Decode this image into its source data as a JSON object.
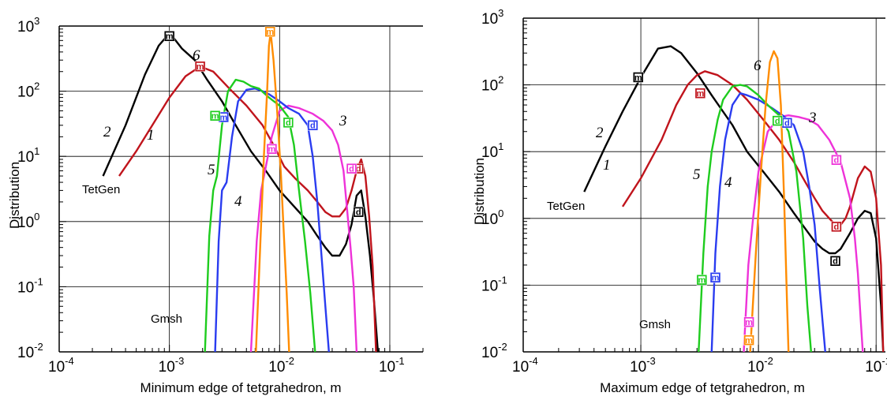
{
  "colors": {
    "1": "#c0141c",
    "2": "#000000",
    "3": "#ee32d8",
    "4": "#2a3cf0",
    "5": "#1ecc1e",
    "6": "#ff8c00"
  },
  "chart_data": [
    {
      "type": "line",
      "title": "",
      "xlabel": "Minimum edge of tetgrahedron, m",
      "ylabel": "Distribution",
      "xscale": "log",
      "yscale": "log",
      "xlim": [
        0.0001,
        0.2
      ],
      "ylim": [
        0.01,
        1000
      ],
      "xticks": [
        {
          "v": 0.0001,
          "b": "10",
          "e": "-4"
        },
        {
          "v": 0.001,
          "b": "10",
          "e": "-3"
        },
        {
          "v": 0.01,
          "b": "10",
          "e": "-2"
        },
        {
          "v": 0.1,
          "b": "10",
          "e": "-1"
        }
      ],
      "yticks": [
        {
          "v": 0.01,
          "b": "10",
          "e": "-2"
        },
        {
          "v": 0.1,
          "b": "10",
          "e": "-1"
        },
        {
          "v": 1,
          "b": "10",
          "e": "0"
        },
        {
          "v": 10,
          "b": "10",
          "e": "1"
        },
        {
          "v": 100,
          "b": "10",
          "e": "2"
        },
        {
          "v": 1000,
          "b": "10",
          "e": "3"
        }
      ],
      "grid": true,
      "annotations": [
        {
          "text": "TetGen",
          "x": 0.00015,
          "y": 2.6
        },
        {
          "text": "Gmsh",
          "x": 0.0006,
          "y": 0.035
        }
      ],
      "series": [
        {
          "num": "1",
          "x": [
            0.00035,
            0.0005,
            0.0007,
            0.001,
            0.0014,
            0.0019,
            0.0025,
            0.0035,
            0.005,
            0.007,
            0.009,
            0.011,
            0.014,
            0.018,
            0.022,
            0.026,
            0.03,
            0.035,
            0.04,
            0.045,
            0.05,
            0.055,
            0.06,
            0.065,
            0.07,
            0.075
          ],
          "y": [
            5,
            12,
            30,
            80,
            170,
            240,
            200,
            110,
            60,
            30,
            14,
            7,
            4.5,
            3,
            2,
            1.4,
            1.2,
            1.2,
            1.6,
            3,
            6,
            9,
            5,
            1.2,
            0.2,
            0.01
          ],
          "markers": [
            {
              "t": "m",
              "x": 0.0019,
              "y": 240
            },
            {
              "t": "d",
              "x": 0.052,
              "y": 6.5
            }
          ]
        },
        {
          "num": "2",
          "x": [
            0.00025,
            0.0004,
            0.0006,
            0.0008,
            0.00095,
            0.0011,
            0.0013,
            0.0017,
            0.0022,
            0.003,
            0.004,
            0.0055,
            0.0075,
            0.01,
            0.014,
            0.018,
            0.022,
            0.026,
            0.03,
            0.035,
            0.04,
            0.045,
            0.05,
            0.055,
            0.06,
            0.066,
            0.072,
            0.078
          ],
          "y": [
            5,
            30,
            180,
            500,
            700,
            650,
            450,
            300,
            150,
            70,
            30,
            12,
            6,
            3,
            1.6,
            1,
            0.6,
            0.4,
            0.3,
            0.3,
            0.45,
            0.9,
            2.5,
            3,
            1.2,
            0.3,
            0.06,
            0.01
          ],
          "markers": [
            {
              "t": "m",
              "x": 0.001,
              "y": 700
            },
            {
              "t": "d",
              "x": 0.052,
              "y": 1.4
            }
          ]
        },
        {
          "num": "3",
          "x": [
            0.0055,
            0.0062,
            0.0068,
            0.0075,
            0.0085,
            0.01,
            0.012,
            0.015,
            0.02,
            0.025,
            0.03,
            0.034,
            0.038,
            0.041,
            0.044,
            0.047,
            0.05
          ],
          "y": [
            0.01,
            0.5,
            3,
            7,
            20,
            50,
            60,
            55,
            45,
            35,
            25,
            15,
            6,
            1.5,
            0.4,
            0.1,
            0.01
          ],
          "markers": [
            {
              "t": "m",
              "x": 0.0085,
              "y": 13
            },
            {
              "t": "d",
              "x": 0.045,
              "y": 6.5
            }
          ]
        },
        {
          "num": "4",
          "x": [
            0.0026,
            0.0028,
            0.003,
            0.0033,
            0.0037,
            0.0042,
            0.005,
            0.006,
            0.007,
            0.008,
            0.01,
            0.012,
            0.015,
            0.018,
            0.02,
            0.022,
            0.024,
            0.026,
            0.028
          ],
          "y": [
            0.01,
            0.5,
            3,
            4,
            20,
            70,
            105,
            110,
            100,
            90,
            70,
            55,
            45,
            30,
            10,
            2,
            0.3,
            0.05,
            0.01
          ],
          "markers": [
            {
              "t": "m",
              "x": 0.0031,
              "y": 40
            },
            {
              "t": "d",
              "x": 0.02,
              "y": 30
            }
          ]
        },
        {
          "num": "5",
          "x": [
            0.0021,
            0.0023,
            0.0025,
            0.0027,
            0.003,
            0.0034,
            0.004,
            0.0047,
            0.0055,
            0.0065,
            0.008,
            0.01,
            0.012,
            0.0135,
            0.015,
            0.017,
            0.019,
            0.021
          ],
          "y": [
            0.01,
            0.6,
            3,
            5,
            30,
            100,
            150,
            140,
            120,
            110,
            80,
            60,
            40,
            15,
            3,
            0.5,
            0.08,
            0.01
          ],
          "markers": [
            {
              "t": "m",
              "x": 0.0026,
              "y": 42
            },
            {
              "t": "d",
              "x": 0.012,
              "y": 33
            }
          ]
        },
        {
          "num": "6",
          "x": [
            0.0061,
            0.0067,
            0.0072,
            0.0077,
            0.008,
            0.0083,
            0.0088,
            0.0095,
            0.0103,
            0.011,
            0.0116,
            0.0122
          ],
          "y": [
            0.01,
            0.5,
            10,
            100,
            500,
            800,
            300,
            50,
            5,
            0.5,
            0.08,
            0.01
          ],
          "markers": [
            {
              "t": "m",
              "x": 0.0082,
              "y": 820
            }
          ]
        }
      ]
    },
    {
      "type": "line",
      "title": "",
      "xlabel": "Maximum edge of tetgrahedron, m",
      "ylabel": "Distribution",
      "xscale": "log",
      "yscale": "log",
      "xlim": [
        0.0001,
        0.12
      ],
      "ylim": [
        0.01,
        1000
      ],
      "xticks": [
        {
          "v": 0.0001,
          "b": "10",
          "e": "-4"
        },
        {
          "v": 0.001,
          "b": "10",
          "e": "-3"
        },
        {
          "v": 0.01,
          "b": "10",
          "e": "-2"
        },
        {
          "v": 0.1,
          "b": "10",
          "e": "-1"
        }
      ],
      "yticks": [
        {
          "v": 0.01,
          "b": "10",
          "e": "-2"
        },
        {
          "v": 0.1,
          "b": "10",
          "e": "-1"
        },
        {
          "v": 1,
          "b": "10",
          "e": "0"
        },
        {
          "v": 10,
          "b": "10",
          "e": "1"
        },
        {
          "v": 100,
          "b": "10",
          "e": "2"
        },
        {
          "v": 1000,
          "b": "10",
          "e": "3"
        }
      ],
      "grid": true,
      "annotations": [
        {
          "text": "TetGen",
          "x": 0.00025,
          "y": 1.2
        },
        {
          "text": "Gmsh",
          "x": 0.0008,
          "y": 0.025
        }
      ],
      "series": [
        {
          "num": "1",
          "x": [
            0.0007,
            0.001,
            0.0015,
            0.002,
            0.0025,
            0.003,
            0.0035,
            0.0045,
            0.006,
            0.008,
            0.011,
            0.015,
            0.02,
            0.025,
            0.03,
            0.035,
            0.04,
            0.045,
            0.05,
            0.055,
            0.06,
            0.07,
            0.08,
            0.09,
            0.1,
            0.11,
            0.115
          ],
          "y": [
            1.5,
            4,
            15,
            50,
            100,
            140,
            160,
            140,
            100,
            60,
            30,
            15,
            7,
            3.5,
            2,
            1.3,
            1,
            0.8,
            0.8,
            1,
            1.5,
            4,
            6,
            5,
            2,
            0.2,
            0.01
          ],
          "markers": [
            {
              "t": "m",
              "x": 0.0032,
              "y": 75
            },
            {
              "t": "d",
              "x": 0.046,
              "y": 0.75
            }
          ]
        },
        {
          "num": "2",
          "x": [
            0.00033,
            0.0005,
            0.0007,
            0.001,
            0.0014,
            0.0018,
            0.0022,
            0.003,
            0.004,
            0.006,
            0.008,
            0.011,
            0.015,
            0.02,
            0.025,
            0.03,
            0.035,
            0.04,
            0.045,
            0.05,
            0.06,
            0.07,
            0.08,
            0.09,
            0.1,
            0.11,
            0.115
          ],
          "y": [
            2.5,
            12,
            40,
            130,
            350,
            380,
            300,
            150,
            70,
            25,
            10,
            5,
            2.5,
            1.2,
            0.7,
            0.45,
            0.35,
            0.3,
            0.3,
            0.35,
            0.6,
            1,
            1.3,
            1.2,
            0.5,
            0.05,
            0.01
          ],
          "markers": [
            {
              "t": "m",
              "x": 0.00095,
              "y": 130
            },
            {
              "t": "d",
              "x": 0.045,
              "y": 0.23
            }
          ]
        },
        {
          "num": "3",
          "x": [
            0.0075,
            0.0082,
            0.009,
            0.01,
            0.012,
            0.015,
            0.018,
            0.022,
            0.027,
            0.032,
            0.04,
            0.05,
            0.06,
            0.066,
            0.07,
            0.074,
            0.077
          ],
          "y": [
            0.01,
            0.2,
            1,
            5,
            20,
            33,
            35,
            33,
            30,
            25,
            15,
            7,
            2,
            0.5,
            0.15,
            0.03,
            0.01
          ],
          "markers": [
            {
              "t": "m",
              "x": 0.0083,
              "y": 0.028
            },
            {
              "t": "d",
              "x": 0.046,
              "y": 7.5
            }
          ]
        },
        {
          "num": "4",
          "x": [
            0.004,
            0.0043,
            0.0047,
            0.0052,
            0.006,
            0.007,
            0.008,
            0.01,
            0.013,
            0.016,
            0.02,
            0.024,
            0.027,
            0.03,
            0.033,
            0.035,
            0.037
          ],
          "y": [
            0.01,
            0.3,
            3,
            15,
            50,
            75,
            70,
            60,
            45,
            35,
            25,
            10,
            3,
            0.8,
            0.1,
            0.03,
            0.01
          ],
          "markers": [
            {
              "t": "m",
              "x": 0.0043,
              "y": 0.13
            },
            {
              "t": "d",
              "x": 0.0175,
              "y": 27
            }
          ]
        },
        {
          "num": "5",
          "x": [
            0.0031,
            0.0034,
            0.0037,
            0.004,
            0.0045,
            0.005,
            0.006,
            0.007,
            0.008,
            0.01,
            0.012,
            0.015,
            0.018,
            0.021,
            0.024,
            0.026,
            0.028
          ],
          "y": [
            0.01,
            0.3,
            3,
            10,
            30,
            60,
            95,
            100,
            95,
            70,
            50,
            35,
            20,
            5,
            0.5,
            0.05,
            0.01
          ],
          "markers": [
            {
              "t": "m",
              "x": 0.0033,
              "y": 0.12
            },
            {
              "t": "d",
              "x": 0.0145,
              "y": 29
            }
          ]
        },
        {
          "num": "6",
          "x": [
            0.0085,
            0.0095,
            0.0105,
            0.0115,
            0.0125,
            0.0135,
            0.0145,
            0.0155,
            0.0165,
            0.0175,
            0.018
          ],
          "y": [
            0.01,
            0.3,
            5,
            50,
            220,
            320,
            250,
            50,
            2,
            0.05,
            0.01
          ],
          "markers": [
            {
              "t": "m",
              "x": 0.0083,
              "y": 0.015
            }
          ]
        }
      ]
    }
  ]
}
